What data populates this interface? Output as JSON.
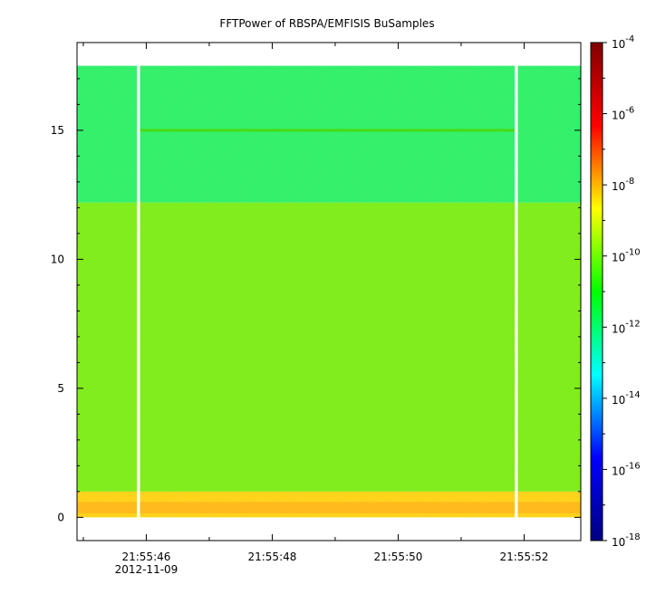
{
  "chart_data": {
    "type": "heatmap",
    "title": "FFTPower of RBSPA/EMFISIS  BuSamples",
    "xlabel": "",
    "ylabel": "",
    "x_ticks": [
      {
        "value": 46,
        "label": "21:55:46",
        "sublabel": "2012-11-09"
      },
      {
        "value": 48,
        "label": "21:55:48",
        "sublabel": ""
      },
      {
        "value": 50,
        "label": "21:55:50",
        "sublabel": ""
      },
      {
        "value": 52,
        "label": "21:55:52",
        "sublabel": ""
      }
    ],
    "x_minor_ticks": [
      45,
      47,
      49,
      51,
      53
    ],
    "xlim": [
      44.9,
      52.9
    ],
    "y_ticks": [
      0,
      5,
      10,
      15
    ],
    "ylim": [
      -0.9,
      18.4
    ],
    "colorbar": {
      "scale": "log",
      "range_exp": [
        -18,
        -4
      ],
      "tick_exps": [
        -4,
        -6,
        -8,
        -10,
        -12,
        -14,
        -16,
        -18
      ],
      "tick_base": "10",
      "stops": [
        "#00007f",
        "#0000ff",
        "#00ffff",
        "#00ff00",
        "#ffff00",
        "#ff0000",
        "#7f0000"
      ]
    },
    "data_extent": {
      "x": [
        44.9,
        52.9
      ],
      "y": [
        0,
        17.5
      ]
    },
    "gaps_x": [
      {
        "x0": 45.85,
        "x1": 45.9
      },
      {
        "x0": 51.85,
        "x1": 51.9
      }
    ],
    "bands": [
      {
        "y0": 0,
        "y1": 1,
        "level_exp": -8.5,
        "color": "#ffd21e"
      },
      {
        "y0": 1,
        "y1": 12.2,
        "level_exp": -10.0,
        "color": "#7bed1f"
      },
      {
        "y0": 12.2,
        "y1": 17.5,
        "level_exp": -11.0,
        "color": "#2cf070"
      }
    ],
    "line_feature": {
      "y": 15.0,
      "x0": 45.9,
      "x1": 51.85,
      "color": "#46dc14"
    },
    "grid": false
  }
}
